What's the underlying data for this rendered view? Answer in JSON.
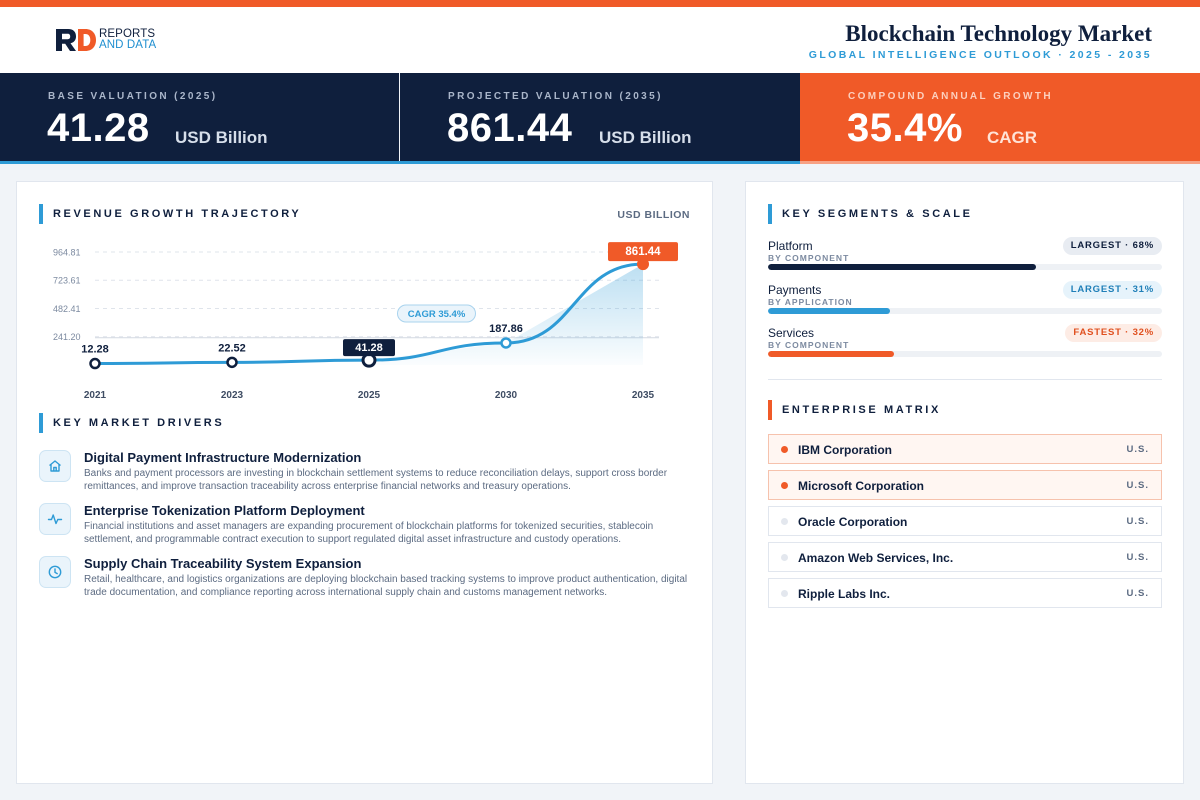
{
  "brand": {
    "line1": "REPORTS",
    "line2": "AND DATA"
  },
  "header": {
    "title": "Blockchain Technology Market",
    "subtitle": "GLOBAL INTELLIGENCE OUTLOOK  ·  2025 - 2035"
  },
  "kpis": [
    {
      "label": "BASE VALUATION (2025)",
      "value": "41.28",
      "unit": "USD Billion"
    },
    {
      "label": "PROJECTED VALUATION (2035)",
      "value": "861.44",
      "unit": "USD Billion"
    },
    {
      "label": "COMPOUND ANNUAL GROWTH",
      "value": "35.4%",
      "unit": "CAGR"
    }
  ],
  "growth": {
    "title": "REVENUE GROWTH TRAJECTORY",
    "unit": "USD BILLION",
    "cagr_badge": "CAGR 35.4%"
  },
  "chart_data": {
    "type": "area",
    "categories": [
      "2021",
      "2023",
      "2025",
      "2030",
      "2035"
    ],
    "values": [
      12.28,
      22.52,
      41.28,
      187.86,
      861.44
    ],
    "value_labels": [
      "12.28",
      "22.52",
      "41.28",
      "187.86",
      "861.44"
    ],
    "yticks": [
      241.2,
      482.41,
      723.61,
      964.81
    ],
    "ytick_labels": [
      "241.20",
      "482.41",
      "723.61",
      "964.81"
    ],
    "ylim": [
      0,
      1050
    ],
    "highlight_base_index": 2,
    "highlight_end_index": 4,
    "line_color": "#2e9bd6",
    "highlight_color": "#f05a28",
    "base_color": "#0f1f3d"
  },
  "drivers": {
    "title": "KEY MARKET DRIVERS",
    "items": [
      {
        "icon": "home-icon",
        "title": "Digital Payment Infrastructure Modernization",
        "desc": "Banks and payment processors are investing in blockchain settlement systems to reduce reconciliation delays, support cross border remittances, and improve transaction traceability across enterprise financial networks and treasury operations."
      },
      {
        "icon": "pulse-icon",
        "title": "Enterprise Tokenization Platform Deployment",
        "desc": "Financial institutions and asset managers are expanding procurement of blockchain platforms for tokenized securities, stablecoin settlement, and programmable contract execution to support regulated digital asset infrastructure and custody operations."
      },
      {
        "icon": "clock-icon",
        "title": "Supply Chain Traceability System Expansion",
        "desc": "Retail, healthcare, and logistics organizations are deploying blockchain based tracking systems to improve product authentication, digital trade documentation, and compliance reporting across international supply chain and customs management networks."
      }
    ]
  },
  "segments": {
    "title": "KEY SEGMENTS & SCALE",
    "items": [
      {
        "name": "Platform",
        "sub": "BY COMPONENT",
        "badge": "LARGEST · 68%",
        "share": 68,
        "color": "#0f1f3d",
        "badge_bg": "#e8ecf2",
        "badge_fg": "#0f1f3d"
      },
      {
        "name": "Payments",
        "sub": "BY APPLICATION",
        "badge": "LARGEST · 31%",
        "share": 31,
        "color": "#2e9bd6",
        "badge_bg": "#e6f3fb",
        "badge_fg": "#1f7fb8"
      },
      {
        "name": "Services",
        "sub": "BY COMPONENT",
        "badge": "FASTEST · 32%",
        "share": 32,
        "color": "#f05a28",
        "badge_bg": "#fdece5",
        "badge_fg": "#e0501f"
      }
    ]
  },
  "matrix": {
    "title": "ENTERPRISE MATRIX",
    "rows": [
      {
        "name": "IBM Corporation",
        "country": "U.S.",
        "highlighted": true
      },
      {
        "name": "Microsoft Corporation",
        "country": "U.S.",
        "highlighted": true
      },
      {
        "name": "Oracle Corporation",
        "country": "U.S.",
        "highlighted": false
      },
      {
        "name": "Amazon Web Services, Inc.",
        "country": "U.S.",
        "highlighted": false
      },
      {
        "name": "Ripple Labs Inc.",
        "country": "U.S.",
        "highlighted": false
      }
    ]
  }
}
